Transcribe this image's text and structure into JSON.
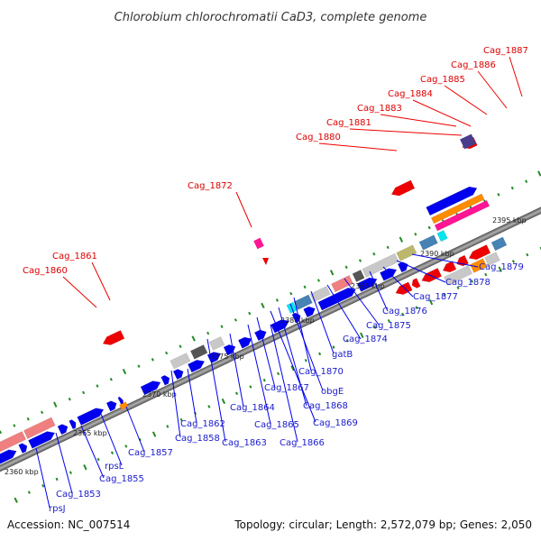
{
  "title": "Chlorobium chlorochromatii CaD3, complete genome",
  "footer": {
    "accession": "Accession: NC_007514",
    "topology": "Topology: circular; Length: 2,572,079 bp; Genes: 2,050"
  },
  "kbp_ticks": [
    "2360 kbp",
    "2365 kbp",
    "2370 kbp",
    "2375 kbp",
    "2380 kbp",
    "2385 kbp",
    "2390 kbp",
    "2395 kbp"
  ],
  "red_labels": [
    "Cag_1887",
    "Cag_1886",
    "Cag_1885",
    "Cag_1884",
    "Cag_1883",
    "Cag_1881",
    "Cag_1880",
    "Cag_1872",
    "Cag_1861",
    "Cag_1860"
  ],
  "blue_labels": [
    "Cag_1879",
    "Cag_1878",
    "Cag_1877",
    "Cag_1876",
    "Cag_1875",
    "Cag_1874",
    "gatB",
    "Cag_1870",
    "obgE",
    "Cag_1868",
    "Cag_1869",
    "Cag_1867",
    "Cag_1866",
    "Cag_1865",
    "Cag_1864",
    "Cag_1863",
    "Cag_1862",
    "Cag_1858",
    "Cag_1857",
    "rpsL",
    "Cag_1855",
    "Cag_1853",
    "rpsJ"
  ],
  "colors": {
    "forward_gene": "#0000ee",
    "reverse_gene": "#ee0000",
    "pseudo_gray": "#c8c8c8",
    "salmon": "#f08080",
    "orange": "#ff8c00",
    "magenta": "#ff1493",
    "cyan": "#00e5ee",
    "steel": "#4682b4",
    "olive": "#bdb76b",
    "dark_gray": "#555555",
    "tick_green": "#228b22",
    "axis": "#707070"
  }
}
